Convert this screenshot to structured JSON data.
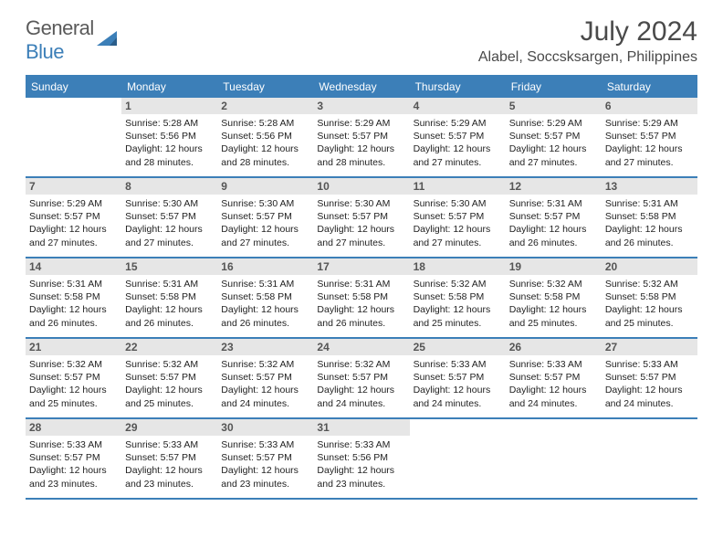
{
  "brand": {
    "general": "General",
    "blue": "Blue"
  },
  "title": "July 2024",
  "subtitle": "Alabel, Soccsksargen, Philippines",
  "colors": {
    "accent": "#3c7fb8",
    "dow_bg": "#3c7fb8",
    "dow_text": "#ffffff",
    "daynum_bg": "#e6e6e6",
    "daynum_text": "#555555",
    "body_text": "#222222",
    "title_text": "#4a4a4a",
    "logo_gray": "#5a5a5a",
    "page_bg": "#ffffff"
  },
  "typography": {
    "title_fontsize": 30,
    "subtitle_fontsize": 16,
    "dow_fontsize": 12,
    "daynum_fontsize": 12,
    "body_fontsize": 10.5,
    "font_family": "Arial"
  },
  "days_of_week": [
    "Sunday",
    "Monday",
    "Tuesday",
    "Wednesday",
    "Thursday",
    "Friday",
    "Saturday"
  ],
  "weeks": [
    [
      null,
      {
        "n": "1",
        "sunrise": "Sunrise: 5:28 AM",
        "sunset": "Sunset: 5:56 PM",
        "d1": "Daylight: 12 hours",
        "d2": "and 28 minutes."
      },
      {
        "n": "2",
        "sunrise": "Sunrise: 5:28 AM",
        "sunset": "Sunset: 5:56 PM",
        "d1": "Daylight: 12 hours",
        "d2": "and 28 minutes."
      },
      {
        "n": "3",
        "sunrise": "Sunrise: 5:29 AM",
        "sunset": "Sunset: 5:57 PM",
        "d1": "Daylight: 12 hours",
        "d2": "and 28 minutes."
      },
      {
        "n": "4",
        "sunrise": "Sunrise: 5:29 AM",
        "sunset": "Sunset: 5:57 PM",
        "d1": "Daylight: 12 hours",
        "d2": "and 27 minutes."
      },
      {
        "n": "5",
        "sunrise": "Sunrise: 5:29 AM",
        "sunset": "Sunset: 5:57 PM",
        "d1": "Daylight: 12 hours",
        "d2": "and 27 minutes."
      },
      {
        "n": "6",
        "sunrise": "Sunrise: 5:29 AM",
        "sunset": "Sunset: 5:57 PM",
        "d1": "Daylight: 12 hours",
        "d2": "and 27 minutes."
      }
    ],
    [
      {
        "n": "7",
        "sunrise": "Sunrise: 5:29 AM",
        "sunset": "Sunset: 5:57 PM",
        "d1": "Daylight: 12 hours",
        "d2": "and 27 minutes."
      },
      {
        "n": "8",
        "sunrise": "Sunrise: 5:30 AM",
        "sunset": "Sunset: 5:57 PM",
        "d1": "Daylight: 12 hours",
        "d2": "and 27 minutes."
      },
      {
        "n": "9",
        "sunrise": "Sunrise: 5:30 AM",
        "sunset": "Sunset: 5:57 PM",
        "d1": "Daylight: 12 hours",
        "d2": "and 27 minutes."
      },
      {
        "n": "10",
        "sunrise": "Sunrise: 5:30 AM",
        "sunset": "Sunset: 5:57 PM",
        "d1": "Daylight: 12 hours",
        "d2": "and 27 minutes."
      },
      {
        "n": "11",
        "sunrise": "Sunrise: 5:30 AM",
        "sunset": "Sunset: 5:57 PM",
        "d1": "Daylight: 12 hours",
        "d2": "and 27 minutes."
      },
      {
        "n": "12",
        "sunrise": "Sunrise: 5:31 AM",
        "sunset": "Sunset: 5:57 PM",
        "d1": "Daylight: 12 hours",
        "d2": "and 26 minutes."
      },
      {
        "n": "13",
        "sunrise": "Sunrise: 5:31 AM",
        "sunset": "Sunset: 5:58 PM",
        "d1": "Daylight: 12 hours",
        "d2": "and 26 minutes."
      }
    ],
    [
      {
        "n": "14",
        "sunrise": "Sunrise: 5:31 AM",
        "sunset": "Sunset: 5:58 PM",
        "d1": "Daylight: 12 hours",
        "d2": "and 26 minutes."
      },
      {
        "n": "15",
        "sunrise": "Sunrise: 5:31 AM",
        "sunset": "Sunset: 5:58 PM",
        "d1": "Daylight: 12 hours",
        "d2": "and 26 minutes."
      },
      {
        "n": "16",
        "sunrise": "Sunrise: 5:31 AM",
        "sunset": "Sunset: 5:58 PM",
        "d1": "Daylight: 12 hours",
        "d2": "and 26 minutes."
      },
      {
        "n": "17",
        "sunrise": "Sunrise: 5:31 AM",
        "sunset": "Sunset: 5:58 PM",
        "d1": "Daylight: 12 hours",
        "d2": "and 26 minutes."
      },
      {
        "n": "18",
        "sunrise": "Sunrise: 5:32 AM",
        "sunset": "Sunset: 5:58 PM",
        "d1": "Daylight: 12 hours",
        "d2": "and 25 minutes."
      },
      {
        "n": "19",
        "sunrise": "Sunrise: 5:32 AM",
        "sunset": "Sunset: 5:58 PM",
        "d1": "Daylight: 12 hours",
        "d2": "and 25 minutes."
      },
      {
        "n": "20",
        "sunrise": "Sunrise: 5:32 AM",
        "sunset": "Sunset: 5:58 PM",
        "d1": "Daylight: 12 hours",
        "d2": "and 25 minutes."
      }
    ],
    [
      {
        "n": "21",
        "sunrise": "Sunrise: 5:32 AM",
        "sunset": "Sunset: 5:57 PM",
        "d1": "Daylight: 12 hours",
        "d2": "and 25 minutes."
      },
      {
        "n": "22",
        "sunrise": "Sunrise: 5:32 AM",
        "sunset": "Sunset: 5:57 PM",
        "d1": "Daylight: 12 hours",
        "d2": "and 25 minutes."
      },
      {
        "n": "23",
        "sunrise": "Sunrise: 5:32 AM",
        "sunset": "Sunset: 5:57 PM",
        "d1": "Daylight: 12 hours",
        "d2": "and 24 minutes."
      },
      {
        "n": "24",
        "sunrise": "Sunrise: 5:32 AM",
        "sunset": "Sunset: 5:57 PM",
        "d1": "Daylight: 12 hours",
        "d2": "and 24 minutes."
      },
      {
        "n": "25",
        "sunrise": "Sunrise: 5:33 AM",
        "sunset": "Sunset: 5:57 PM",
        "d1": "Daylight: 12 hours",
        "d2": "and 24 minutes."
      },
      {
        "n": "26",
        "sunrise": "Sunrise: 5:33 AM",
        "sunset": "Sunset: 5:57 PM",
        "d1": "Daylight: 12 hours",
        "d2": "and 24 minutes."
      },
      {
        "n": "27",
        "sunrise": "Sunrise: 5:33 AM",
        "sunset": "Sunset: 5:57 PM",
        "d1": "Daylight: 12 hours",
        "d2": "and 24 minutes."
      }
    ],
    [
      {
        "n": "28",
        "sunrise": "Sunrise: 5:33 AM",
        "sunset": "Sunset: 5:57 PM",
        "d1": "Daylight: 12 hours",
        "d2": "and 23 minutes."
      },
      {
        "n": "29",
        "sunrise": "Sunrise: 5:33 AM",
        "sunset": "Sunset: 5:57 PM",
        "d1": "Daylight: 12 hours",
        "d2": "and 23 minutes."
      },
      {
        "n": "30",
        "sunrise": "Sunrise: 5:33 AM",
        "sunset": "Sunset: 5:57 PM",
        "d1": "Daylight: 12 hours",
        "d2": "and 23 minutes."
      },
      {
        "n": "31",
        "sunrise": "Sunrise: 5:33 AM",
        "sunset": "Sunset: 5:56 PM",
        "d1": "Daylight: 12 hours",
        "d2": "and 23 minutes."
      },
      null,
      null,
      null
    ]
  ]
}
